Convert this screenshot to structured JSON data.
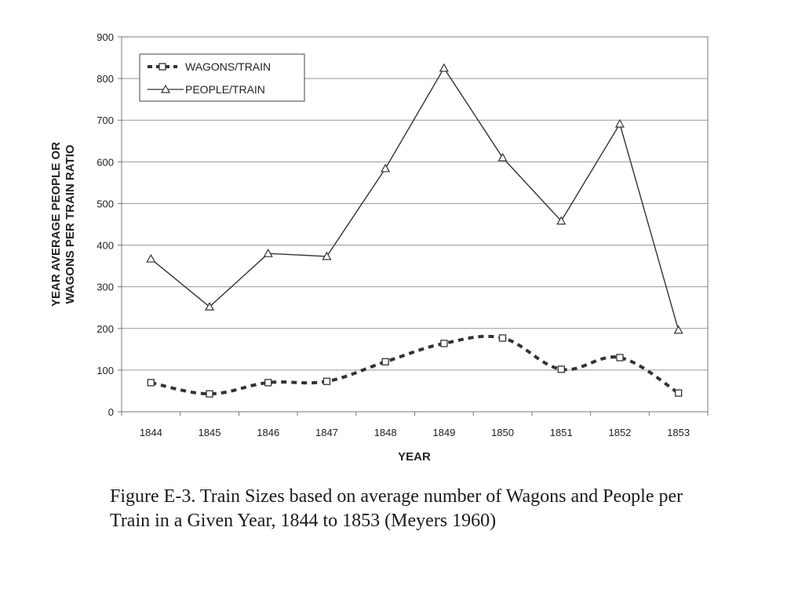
{
  "chart_data": {
    "type": "line",
    "title": "",
    "xlabel": "YEAR",
    "ylabel_lines": [
      "YEAR AVERAGE PEOPLE OR",
      "WAGONS PER TRAIN RATIO"
    ],
    "categories": [
      "1844",
      "1845",
      "1846",
      "1847",
      "1848",
      "1849",
      "1850",
      "1851",
      "1852",
      "1853"
    ],
    "ylim": [
      0,
      900
    ],
    "yticks": [
      "0",
      "100",
      "200",
      "300",
      "400",
      "500",
      "600",
      "700",
      "800",
      "900"
    ],
    "grid": true,
    "legend_position": "top-left",
    "series": [
      {
        "name": "WAGONS/TRAIN",
        "style": "dashed",
        "marker": "square",
        "values": [
          70,
          43,
          70,
          73,
          120,
          164,
          177,
          102,
          130,
          45
        ]
      },
      {
        "name": "PEOPLE/TRAIN",
        "style": "solid",
        "marker": "triangle",
        "values": [
          367,
          252,
          380,
          373,
          584,
          825,
          610,
          458,
          691,
          196
        ]
      }
    ]
  },
  "caption": "Figure E-3.  Train Sizes based on average number of Wagons and People per Train in a Given Year, 1844 to 1853 (Meyers 1960)"
}
